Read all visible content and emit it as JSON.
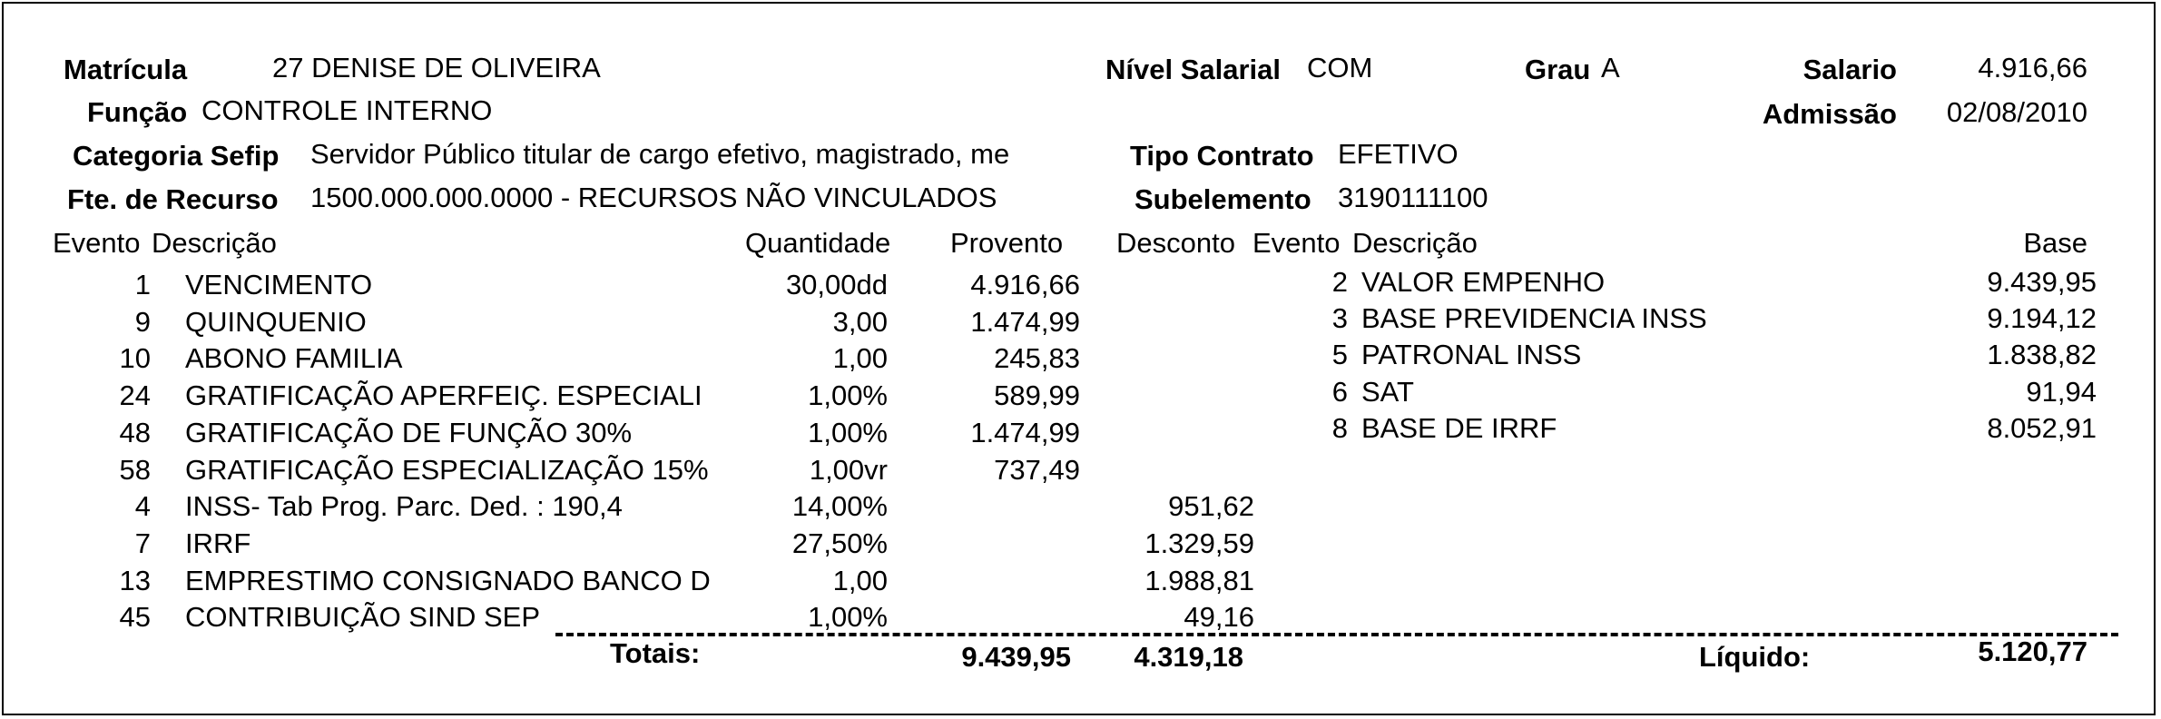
{
  "header": {
    "matricula_label": "Matrícula",
    "matricula_value": "27 DENISE DE OLIVEIRA",
    "nivel_label": "Nível Salarial",
    "nivel_value": "COM",
    "grau_label": "Grau",
    "grau_value": "A",
    "salario_label": "Salario",
    "salario_value": "4.916,66",
    "funcao_label": "Função",
    "funcao_value": "CONTROLE INTERNO",
    "admissao_label": "Admissão",
    "admissao_value": "02/08/2010",
    "categoria_label": "Categoria Sefip",
    "categoria_value": "Servidor Público titular de cargo efetivo, magistrado, me",
    "tipo_contrato_label": "Tipo Contrato",
    "tipo_contrato_value": "EFETIVO",
    "fonte_label": "Fte. de Recurso",
    "fonte_value": "1500.000.000.0000 - RECURSOS NÃO VINCULADOS",
    "subelemento_label": "Subelemento",
    "subelemento_value": "3190111100"
  },
  "columns": {
    "evento": "Evento",
    "descricao": "Descrição",
    "quantidade": "Quantidade",
    "provento": "Provento",
    "desconto": "Desconto",
    "evento2": "Evento",
    "descricao2": "Descrição",
    "base": "Base"
  },
  "events": [
    {
      "evento": "1",
      "descricao": "VENCIMENTO",
      "quantidade": "30,00dd",
      "provento": "4.916,66",
      "desconto": ""
    },
    {
      "evento": "9",
      "descricao": "QUINQUENIO",
      "quantidade": "3,00",
      "provento": "1.474,99",
      "desconto": ""
    },
    {
      "evento": "10",
      "descricao": "ABONO FAMILIA",
      "quantidade": "1,00",
      "provento": "245,83",
      "desconto": ""
    },
    {
      "evento": "24",
      "descricao": "GRATIFICAÇÃO APERFEIÇ. ESPECIALI",
      "quantidade": "1,00%",
      "provento": "589,99",
      "desconto": ""
    },
    {
      "evento": "48",
      "descricao": "GRATIFICAÇÃO DE FUNÇÃO 30%",
      "quantidade": "1,00%",
      "provento": "1.474,99",
      "desconto": ""
    },
    {
      "evento": "58",
      "descricao": "GRATIFICAÇÃO ESPECIALIZAÇÃO 15%",
      "quantidade": "1,00vr",
      "provento": "737,49",
      "desconto": ""
    },
    {
      "evento": "4",
      "descricao": "INSS- Tab Prog. Parc. Ded. : 190,4",
      "quantidade": "14,00%",
      "provento": "",
      "desconto": "951,62"
    },
    {
      "evento": "7",
      "descricao": "IRRF",
      "quantidade": "27,50%",
      "provento": "",
      "desconto": "1.329,59"
    },
    {
      "evento": "13",
      "descricao": "EMPRESTIMO CONSIGNADO BANCO D",
      "quantidade": "1,00",
      "provento": "",
      "desconto": "1.988,81"
    },
    {
      "evento": "45",
      "descricao": "CONTRIBUIÇÃO SIND SEP",
      "quantidade": "1,00%",
      "provento": "",
      "desconto": "49,16"
    }
  ],
  "bases": [
    {
      "evento": "2",
      "descricao": "VALOR EMPENHO",
      "base": "9.439,95"
    },
    {
      "evento": "3",
      "descricao": "BASE PREVIDENCIA INSS",
      "base": "9.194,12"
    },
    {
      "evento": "5",
      "descricao": "PATRONAL INSS",
      "base": "1.838,82"
    },
    {
      "evento": "6",
      "descricao": "SAT",
      "base": "91,94"
    },
    {
      "evento": "8",
      "descricao": "BASE DE IRRF",
      "base": "8.052,91"
    }
  ],
  "totals": {
    "totais_label": "Totais:",
    "proventos": "9.439,95",
    "descontos": "4.319,18",
    "liquido_label": "Líquido:",
    "liquido": "5.120,77"
  }
}
